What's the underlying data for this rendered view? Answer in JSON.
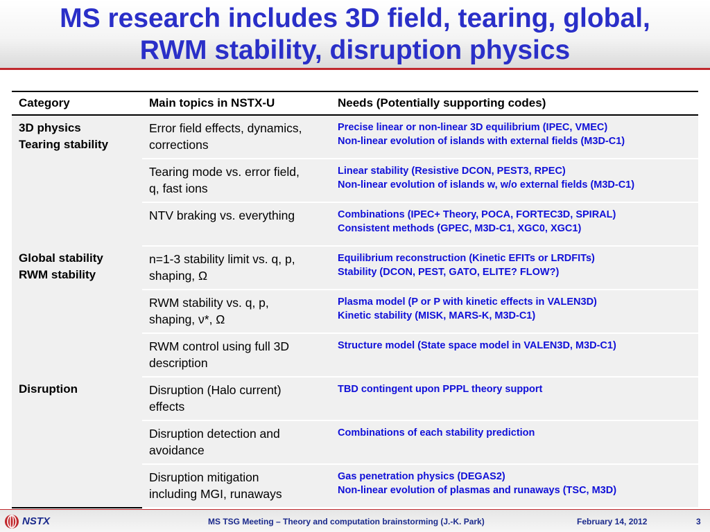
{
  "slide": {
    "title_line1": "MS research includes 3D field, tearing, global,",
    "title_line2": "RWM stability, disruption physics"
  },
  "table": {
    "headers": [
      "Category",
      "Main topics in NSTX-U",
      "Needs (Potentially supporting codes)"
    ],
    "groups": [
      {
        "category": [
          "3D physics",
          "Tearing stability"
        ],
        "rows": [
          {
            "topic": [
              "Error field effects, dynamics,",
              "corrections"
            ],
            "needs": [
              "Precise linear or non-linear 3D equilibrium (IPEC, VMEC)",
              "Non-linear evolution of islands with external fields (M3D-C1)"
            ]
          },
          {
            "topic": [
              "Tearing mode vs. error field,",
              "q, fast ions"
            ],
            "needs": [
              "Linear stability (Resistive DCON, PEST3, RPEC)",
              "Non-linear evolution of islands w, w/o external fields (M3D-C1)"
            ]
          },
          {
            "topic": [
              "NTV braking vs. everything"
            ],
            "needs": [
              "Combinations (IPEC+ Theory, POCA, FORTEC3D, SPIRAL)",
              "Consistent methods (GPEC, M3D-C1, XGC0, XGC1)"
            ]
          }
        ]
      },
      {
        "category": [
          "Global stability",
          "RWM stability"
        ],
        "rows": [
          {
            "topic": [
              "n=1-3 stability limit vs. q, p,",
              "shaping, Ω"
            ],
            "needs": [
              "Equilibrium reconstruction (Kinetic EFITs or LRDFITs)",
              "Stability (DCON, PEST, GATO, ELITE? FLOW?)"
            ]
          },
          {
            "topic": [
              "RWM stability vs. q, p,",
              "shaping, ν*, Ω"
            ],
            "needs": [
              "Plasma model (P or P with kinetic effects in VALEN3D)",
              "Kinetic stability (MISK, MARS-K, M3D-C1)"
            ]
          },
          {
            "topic": [
              "RWM control using full 3D",
              "description"
            ],
            "needs": [
              "Structure model (State space model in VALEN3D, M3D-C1)"
            ]
          }
        ]
      },
      {
        "category": [
          "Disruption"
        ],
        "rows": [
          {
            "topic": [
              "Disruption (Halo current)",
              "effects"
            ],
            "needs": [
              "TBD contingent upon PPPL theory support"
            ]
          },
          {
            "topic": [
              "Disruption detection and",
              "avoidance"
            ],
            "needs": [
              "Combinations of each stability prediction"
            ]
          },
          {
            "topic": [
              "Disruption mitigation",
              "including MGI, runaways"
            ],
            "needs": [
              "Gas penetration physics (DEGAS2)",
              "Non-linear evolution of plasmas and runaways (TSC, M3D)"
            ]
          }
        ]
      }
    ]
  },
  "footer": {
    "logo_text": "NSTX",
    "meeting": "MS TSG Meeting – Theory and computation brainstorming (J.-K. Park)",
    "date": "February 14, 2012",
    "page": "3"
  },
  "colors": {
    "title": "#2a2fc8",
    "needs_text": "#1010d8",
    "accent_rule": "#c0282d",
    "footer_text": "#1b2a8c"
  }
}
